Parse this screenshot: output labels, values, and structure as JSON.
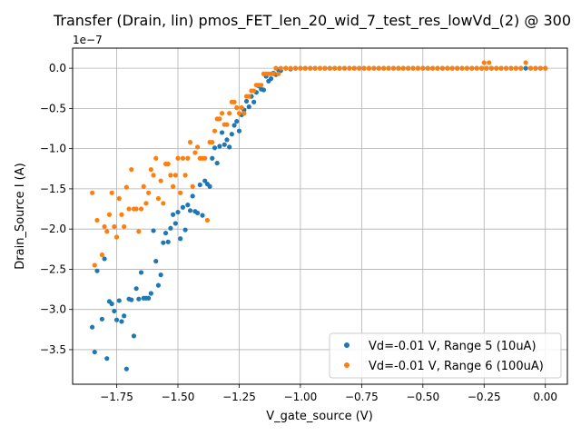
{
  "chart_data": {
    "type": "scatter",
    "title": "Transfer (Drain, lin) pmos_FET_len_20_wid_7_test_res_lowVd_(2) @ 300",
    "xlabel": "V_gate_source (V)",
    "ylabel": "Drain_Source I (A)",
    "y_multiplier_label": "1e−7",
    "xlim": [
      -1.93,
      0.09
    ],
    "ylim": [
      -3.93,
      0.25
    ],
    "x_ticks": [
      -1.75,
      -1.5,
      -1.25,
      -1.0,
      -0.75,
      -0.5,
      -0.25,
      0.0
    ],
    "x_tick_labels": [
      "−1.75",
      "−1.50",
      "−1.25",
      "−1.00",
      "−0.75",
      "−0.50",
      "−0.25",
      "0.00"
    ],
    "y_ticks": [
      -3.5,
      -3.0,
      -2.5,
      -2.0,
      -1.5,
      -1.0,
      -0.5,
      0.0
    ],
    "y_tick_labels": [
      "−3.5",
      "−3.0",
      "−2.5",
      "−2.0",
      "−1.5",
      "−1.0",
      "−0.5",
      "0.0"
    ],
    "grid": true,
    "legend_position": "bottom-right",
    "series": [
      {
        "name": "Vd=-0.01 V, Range 5 (10uA)",
        "color": "#1f77b4",
        "points": [
          [
            -1.85,
            -3.22
          ],
          [
            -1.84,
            -3.53
          ],
          [
            -1.83,
            -2.52
          ],
          [
            -1.81,
            -3.12
          ],
          [
            -1.8,
            -2.37
          ],
          [
            -1.79,
            -3.61
          ],
          [
            -1.78,
            -2.9
          ],
          [
            -1.77,
            -2.93
          ],
          [
            -1.76,
            -3.02
          ],
          [
            -1.75,
            -3.13
          ],
          [
            -1.74,
            -2.89
          ],
          [
            -1.73,
            -3.15
          ],
          [
            -1.72,
            -3.08
          ],
          [
            -1.71,
            -3.74
          ],
          [
            -1.7,
            -2.87
          ],
          [
            -1.69,
            -2.88
          ],
          [
            -1.68,
            -3.33
          ],
          [
            -1.67,
            -2.74
          ],
          [
            -1.66,
            -2.87
          ],
          [
            -1.65,
            -2.54
          ],
          [
            -1.64,
            -2.86
          ],
          [
            -1.63,
            -2.86
          ],
          [
            -1.62,
            -2.86
          ],
          [
            -1.61,
            -2.8
          ],
          [
            -1.6,
            -2.02
          ],
          [
            -1.59,
            -2.4
          ],
          [
            -1.58,
            -2.7
          ],
          [
            -1.57,
            -2.57
          ],
          [
            -1.56,
            -2.17
          ],
          [
            -1.55,
            -2.05
          ],
          [
            -1.54,
            -2.16
          ],
          [
            -1.53,
            -1.99
          ],
          [
            -1.52,
            -1.82
          ],
          [
            -1.51,
            -1.93
          ],
          [
            -1.5,
            -1.79
          ],
          [
            -1.49,
            -2.12
          ],
          [
            -1.48,
            -1.73
          ],
          [
            -1.47,
            -2.01
          ],
          [
            -1.46,
            -1.7
          ],
          [
            -1.45,
            -1.77
          ],
          [
            -1.44,
            -1.59
          ],
          [
            -1.43,
            -1.78
          ],
          [
            -1.42,
            -1.8
          ],
          [
            -1.41,
            -1.45
          ],
          [
            -1.4,
            -1.83
          ],
          [
            -1.39,
            -1.4
          ],
          [
            -1.38,
            -1.44
          ],
          [
            -1.37,
            -1.47
          ],
          [
            -1.36,
            -1.12
          ],
          [
            -1.35,
            -0.99
          ],
          [
            -1.34,
            -1.18
          ],
          [
            -1.33,
            -0.97
          ],
          [
            -1.32,
            -0.8
          ],
          [
            -1.31,
            -0.95
          ],
          [
            -1.3,
            -0.89
          ],
          [
            -1.29,
            -0.98
          ],
          [
            -1.28,
            -0.82
          ],
          [
            -1.27,
            -0.71
          ],
          [
            -1.26,
            -0.66
          ],
          [
            -1.25,
            -0.78
          ],
          [
            -1.24,
            -0.58
          ],
          [
            -1.23,
            -0.52
          ],
          [
            -1.22,
            -0.41
          ],
          [
            -1.21,
            -0.48
          ],
          [
            -1.2,
            -0.35
          ],
          [
            -1.19,
            -0.42
          ],
          [
            -1.18,
            -0.3
          ],
          [
            -1.17,
            -0.22
          ],
          [
            -1.16,
            -0.26
          ],
          [
            -1.15,
            -0.27
          ],
          [
            -1.14,
            -0.1
          ],
          [
            -1.13,
            -0.16
          ],
          [
            -1.12,
            -0.13
          ],
          [
            -1.11,
            -0.06
          ],
          [
            -1.1,
            -0.08
          ],
          [
            -1.09,
            -0.02
          ],
          [
            -1.08,
            -0.03
          ],
          [
            -1.06,
            0.0
          ],
          [
            -1.04,
            -0.01
          ],
          [
            -1.02,
            0.0
          ],
          [
            -1.0,
            0.0
          ],
          [
            -0.98,
            0.0
          ],
          [
            -0.96,
            0.0
          ],
          [
            -0.94,
            0.0
          ],
          [
            -0.92,
            0.0
          ],
          [
            -0.9,
            0.0
          ],
          [
            -0.88,
            0.0
          ],
          [
            -0.86,
            0.0
          ],
          [
            -0.84,
            0.0
          ],
          [
            -0.82,
            0.0
          ],
          [
            -0.8,
            0.0
          ],
          [
            -0.78,
            0.0
          ],
          [
            -0.76,
            0.0
          ],
          [
            -0.74,
            0.0
          ],
          [
            -0.72,
            0.0
          ],
          [
            -0.7,
            0.0
          ],
          [
            -0.68,
            0.0
          ],
          [
            -0.66,
            0.0
          ],
          [
            -0.64,
            0.0
          ],
          [
            -0.62,
            0.0
          ],
          [
            -0.6,
            0.0
          ],
          [
            -0.58,
            0.0
          ],
          [
            -0.56,
            0.0
          ],
          [
            -0.54,
            0.0
          ],
          [
            -0.52,
            0.0
          ],
          [
            -0.5,
            0.0
          ],
          [
            -0.48,
            0.0
          ],
          [
            -0.46,
            0.0
          ],
          [
            -0.44,
            0.0
          ],
          [
            -0.42,
            0.0
          ],
          [
            -0.4,
            0.0
          ],
          [
            -0.38,
            0.0
          ],
          [
            -0.36,
            0.0
          ],
          [
            -0.34,
            0.0
          ],
          [
            -0.32,
            0.0
          ],
          [
            -0.3,
            0.0
          ],
          [
            -0.28,
            0.0
          ],
          [
            -0.26,
            0.0
          ],
          [
            -0.24,
            0.0
          ],
          [
            -0.22,
            0.0
          ],
          [
            -0.2,
            0.0
          ],
          [
            -0.18,
            0.0
          ],
          [
            -0.16,
            0.0
          ],
          [
            -0.14,
            0.0
          ],
          [
            -0.12,
            0.0
          ],
          [
            -0.1,
            0.0
          ],
          [
            -0.08,
            0.0
          ],
          [
            -0.06,
            0.0
          ],
          [
            -0.04,
            0.0
          ],
          [
            -0.02,
            0.0
          ],
          [
            0.0,
            0.0
          ]
        ]
      },
      {
        "name": "Vd=-0.01 V, Range 6 (100uA)",
        "color": "#ff7f0e",
        "points": [
          [
            -1.85,
            -1.55
          ],
          [
            -1.84,
            -2.45
          ],
          [
            -1.83,
            -1.89
          ],
          [
            -1.81,
            -2.32
          ],
          [
            -1.8,
            -1.97
          ],
          [
            -1.79,
            -2.03
          ],
          [
            -1.78,
            -1.82
          ],
          [
            -1.77,
            -1.55
          ],
          [
            -1.76,
            -1.97
          ],
          [
            -1.75,
            -2.1
          ],
          [
            -1.74,
            -1.62
          ],
          [
            -1.73,
            -1.82
          ],
          [
            -1.72,
            -1.97
          ],
          [
            -1.71,
            -1.48
          ],
          [
            -1.7,
            -1.75
          ],
          [
            -1.69,
            -1.26
          ],
          [
            -1.68,
            -1.75
          ],
          [
            -1.67,
            -1.75
          ],
          [
            -1.66,
            -2.03
          ],
          [
            -1.65,
            -1.75
          ],
          [
            -1.64,
            -1.47
          ],
          [
            -1.63,
            -1.68
          ],
          [
            -1.62,
            -1.55
          ],
          [
            -1.61,
            -1.26
          ],
          [
            -1.6,
            -1.33
          ],
          [
            -1.59,
            -1.12
          ],
          [
            -1.58,
            -1.62
          ],
          [
            -1.57,
            -1.4
          ],
          [
            -1.56,
            -1.68
          ],
          [
            -1.55,
            -1.19
          ],
          [
            -1.54,
            -1.19
          ],
          [
            -1.53,
            -1.33
          ],
          [
            -1.52,
            -1.47
          ],
          [
            -1.51,
            -1.33
          ],
          [
            -1.5,
            -1.12
          ],
          [
            -1.49,
            -1.55
          ],
          [
            -1.48,
            -1.12
          ],
          [
            -1.47,
            -1.33
          ],
          [
            -1.46,
            -1.12
          ],
          [
            -1.45,
            -0.92
          ],
          [
            -1.44,
            -1.47
          ],
          [
            -1.43,
            -1.05
          ],
          [
            -1.42,
            -0.98
          ],
          [
            -1.41,
            -1.12
          ],
          [
            -1.4,
            -1.12
          ],
          [
            -1.39,
            -1.12
          ],
          [
            -1.38,
            -1.89
          ],
          [
            -1.37,
            -0.92
          ],
          [
            -1.36,
            -0.92
          ],
          [
            -1.35,
            -0.78
          ],
          [
            -1.34,
            -0.63
          ],
          [
            -1.33,
            -0.63
          ],
          [
            -1.32,
            -0.56
          ],
          [
            -1.31,
            -0.7
          ],
          [
            -1.3,
            -0.7
          ],
          [
            -1.29,
            -0.56
          ],
          [
            -1.28,
            -0.42
          ],
          [
            -1.27,
            -0.42
          ],
          [
            -1.26,
            -0.49
          ],
          [
            -1.25,
            -0.56
          ],
          [
            -1.24,
            -0.49
          ],
          [
            -1.23,
            -0.56
          ],
          [
            -1.22,
            -0.35
          ],
          [
            -1.21,
            -0.35
          ],
          [
            -1.2,
            -0.28
          ],
          [
            -1.19,
            -0.28
          ],
          [
            -1.18,
            -0.21
          ],
          [
            -1.17,
            -0.21
          ],
          [
            -1.16,
            -0.21
          ],
          [
            -1.15,
            -0.07
          ],
          [
            -1.14,
            -0.07
          ],
          [
            -1.13,
            -0.07
          ],
          [
            -1.12,
            -0.07
          ],
          [
            -1.11,
            -0.07
          ],
          [
            -1.1,
            0.0
          ],
          [
            -1.09,
            -0.07
          ],
          [
            -1.08,
            0.0
          ],
          [
            -1.06,
            0.0
          ],
          [
            -1.04,
            0.0
          ],
          [
            -1.02,
            0.0
          ],
          [
            -1.0,
            0.0
          ],
          [
            -0.98,
            0.0
          ],
          [
            -0.96,
            0.0
          ],
          [
            -0.94,
            0.0
          ],
          [
            -0.92,
            0.0
          ],
          [
            -0.9,
            0.0
          ],
          [
            -0.88,
            0.0
          ],
          [
            -0.86,
            0.0
          ],
          [
            -0.84,
            0.0
          ],
          [
            -0.82,
            0.0
          ],
          [
            -0.8,
            0.0
          ],
          [
            -0.78,
            0.0
          ],
          [
            -0.76,
            0.0
          ],
          [
            -0.74,
            0.0
          ],
          [
            -0.72,
            0.0
          ],
          [
            -0.7,
            0.0
          ],
          [
            -0.68,
            0.0
          ],
          [
            -0.66,
            0.0
          ],
          [
            -0.64,
            0.0
          ],
          [
            -0.62,
            0.0
          ],
          [
            -0.6,
            0.0
          ],
          [
            -0.58,
            0.0
          ],
          [
            -0.56,
            0.0
          ],
          [
            -0.54,
            0.0
          ],
          [
            -0.52,
            0.0
          ],
          [
            -0.5,
            0.0
          ],
          [
            -0.48,
            0.0
          ],
          [
            -0.46,
            0.0
          ],
          [
            -0.44,
            0.0
          ],
          [
            -0.42,
            0.0
          ],
          [
            -0.4,
            0.0
          ],
          [
            -0.38,
            0.0
          ],
          [
            -0.36,
            0.0
          ],
          [
            -0.34,
            0.0
          ],
          [
            -0.32,
            0.0
          ],
          [
            -0.3,
            0.0
          ],
          [
            -0.28,
            0.0
          ],
          [
            -0.26,
            0.0
          ],
          [
            -0.25,
            0.07
          ],
          [
            -0.24,
            0.0
          ],
          [
            -0.23,
            0.07
          ],
          [
            -0.22,
            0.0
          ],
          [
            -0.2,
            0.0
          ],
          [
            -0.18,
            0.0
          ],
          [
            -0.16,
            0.0
          ],
          [
            -0.14,
            0.0
          ],
          [
            -0.12,
            0.0
          ],
          [
            -0.1,
            0.0
          ],
          [
            -0.08,
            0.07
          ],
          [
            -0.06,
            0.0
          ],
          [
            -0.04,
            0.0
          ],
          [
            -0.02,
            0.0
          ],
          [
            0.0,
            0.0
          ]
        ]
      }
    ]
  }
}
